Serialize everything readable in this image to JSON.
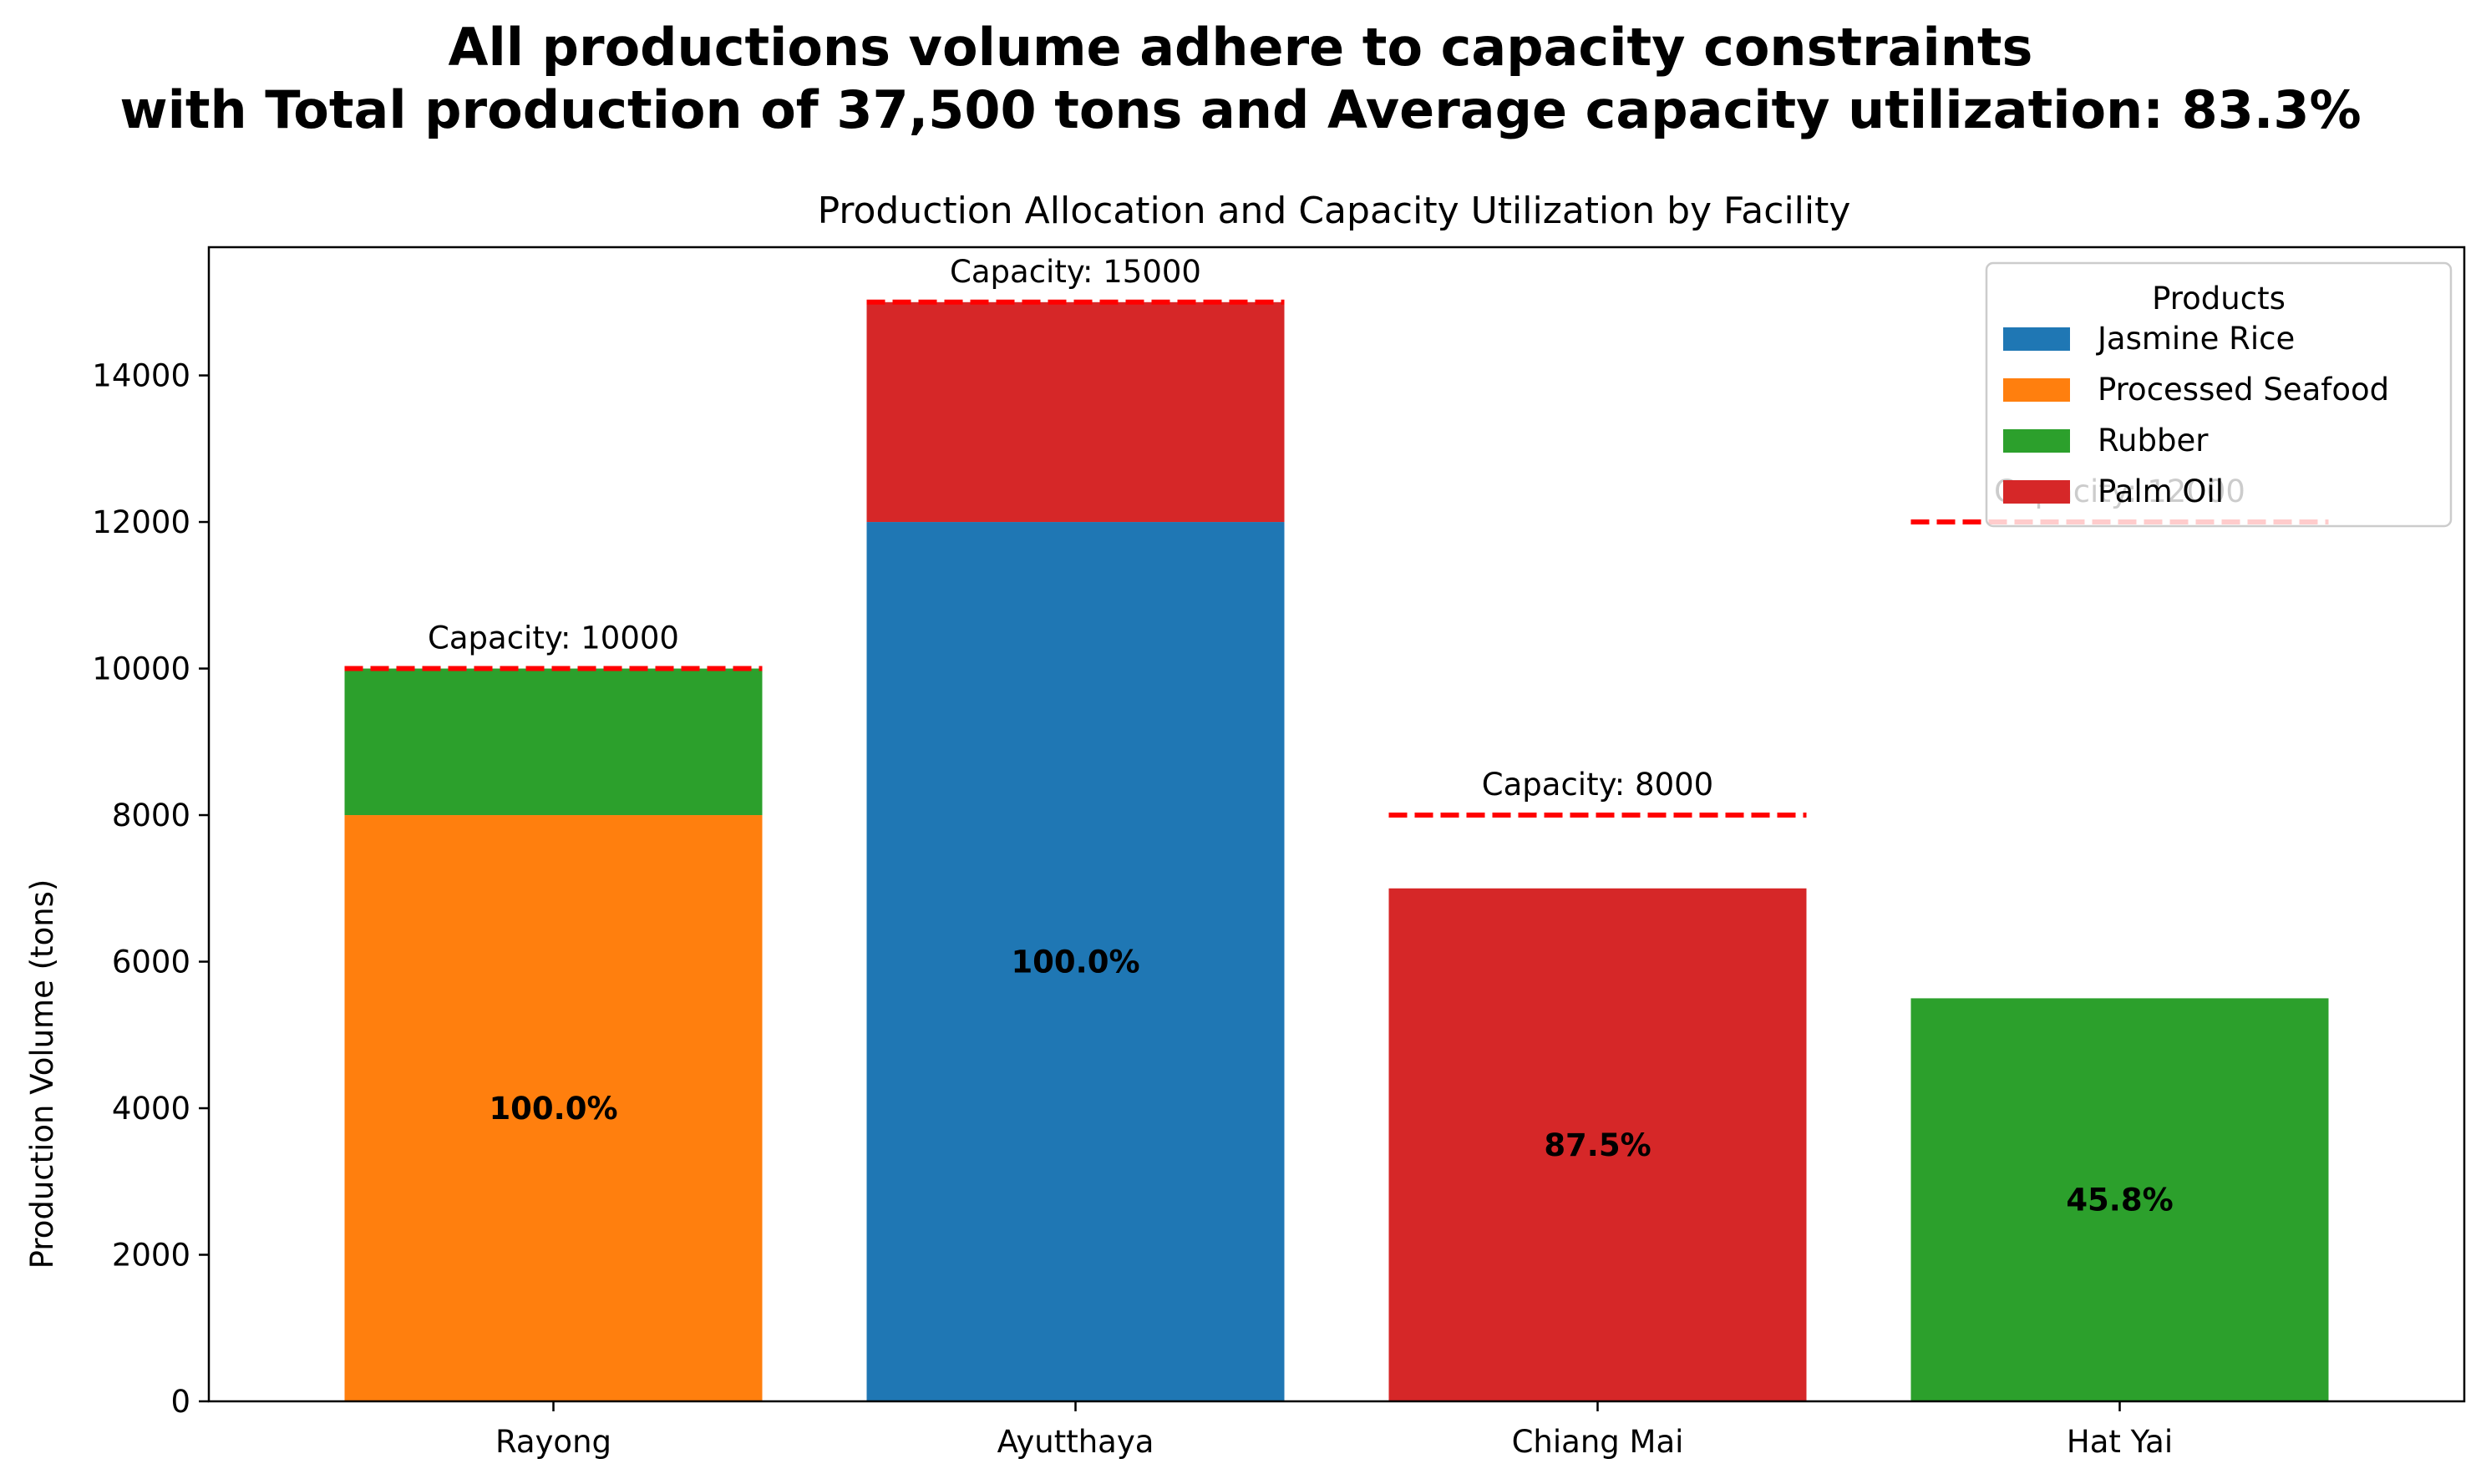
{
  "chart_data": {
    "type": "bar",
    "stacked": true,
    "suptitle_line1": "All productions volume adhere to capacity constraints",
    "suptitle_line2": "with Total production of  37,500 tons and Average capacity utilization: 83.3%",
    "title": "Production Allocation and Capacity Utilization by Facility",
    "xlabel": "",
    "ylabel": "Production Volume (tons)",
    "ylim": [
      0,
      15750
    ],
    "yticks": [
      0,
      2000,
      4000,
      6000,
      8000,
      10000,
      12000,
      14000
    ],
    "categories": [
      "Rayong",
      "Ayutthaya",
      "Chiang Mai",
      "Hat Yai"
    ],
    "series": [
      {
        "name": "Jasmine Rice",
        "color": "#1f77b4",
        "values": [
          0,
          12000,
          0,
          0
        ]
      },
      {
        "name": "Processed Seafood",
        "color": "#ff7f0e",
        "values": [
          8000,
          0,
          0,
          0
        ]
      },
      {
        "name": "Rubber",
        "color": "#2ca02c",
        "values": [
          2000,
          0,
          0,
          5500
        ]
      },
      {
        "name": "Palm Oil",
        "color": "#d62728",
        "values": [
          0,
          3000,
          7000,
          0
        ]
      }
    ],
    "capacities": [
      10000,
      15000,
      8000,
      12000
    ],
    "capacity_label_prefix": "Capacity: ",
    "capacity_line_color": "#ff0000",
    "utilization_labels": [
      "100.0%",
      "100.0%",
      "87.5%",
      "45.8%"
    ],
    "legend_title": "Products",
    "legend_position": "top-right",
    "grid": false
  }
}
